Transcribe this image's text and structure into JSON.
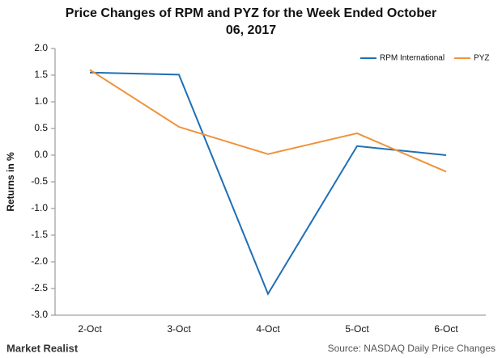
{
  "chart_data": {
    "type": "line",
    "title": "Price Changes of RPM and PYZ for the Week Ended October 06, 2017",
    "y_label": "Returns in %",
    "categories": [
      "2-Oct",
      "3-Oct",
      "4-Oct",
      "5-Oct",
      "6-Oct"
    ],
    "series": [
      {
        "name": "RPM International",
        "color": "#1f6fb5",
        "values": [
          1.55,
          1.51,
          -2.6,
          0.17,
          0.0
        ]
      },
      {
        "name": "PYZ",
        "color": "#f0923a",
        "values": [
          1.6,
          0.53,
          0.02,
          0.41,
          -0.31
        ]
      }
    ],
    "ylim": [
      -3,
      2
    ],
    "yticks": [
      {
        "value": 2,
        "label": "2.0"
      },
      1.5,
      {
        "value": 1,
        "label": "1.0"
      },
      0.5,
      {
        "value": 0,
        "label": "0.0"
      },
      -0.5,
      {
        "value": -1,
        "label": "-1.0"
      },
      -1.5,
      {
        "value": -2,
        "label": "-2.0"
      },
      -2.5,
      {
        "value": -3,
        "label": "-3.0"
      }
    ],
    "legend": "top-right",
    "brand": "Market Realist",
    "source": "Source: NASDAQ Daily Price Changes"
  }
}
